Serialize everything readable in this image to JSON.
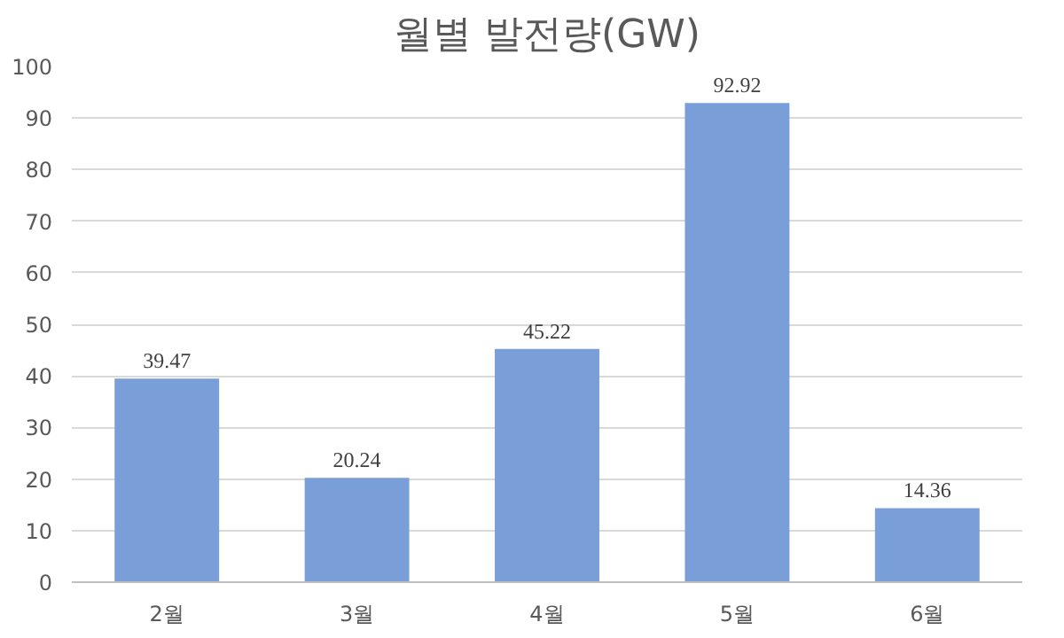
{
  "chart_data": {
    "type": "bar",
    "title": "월별 발전량(GW)",
    "categories": [
      "2월",
      "3월",
      "4월",
      "5월",
      "6월"
    ],
    "values": [
      39.47,
      20.24,
      45.22,
      92.92,
      14.36
    ],
    "color": "#7a9ed8",
    "ylim": [
      0,
      100
    ],
    "yticks": [
      0,
      10,
      20,
      30,
      40,
      50,
      60,
      70,
      80,
      90,
      100
    ],
    "grid": "y",
    "data_labels": true
  }
}
